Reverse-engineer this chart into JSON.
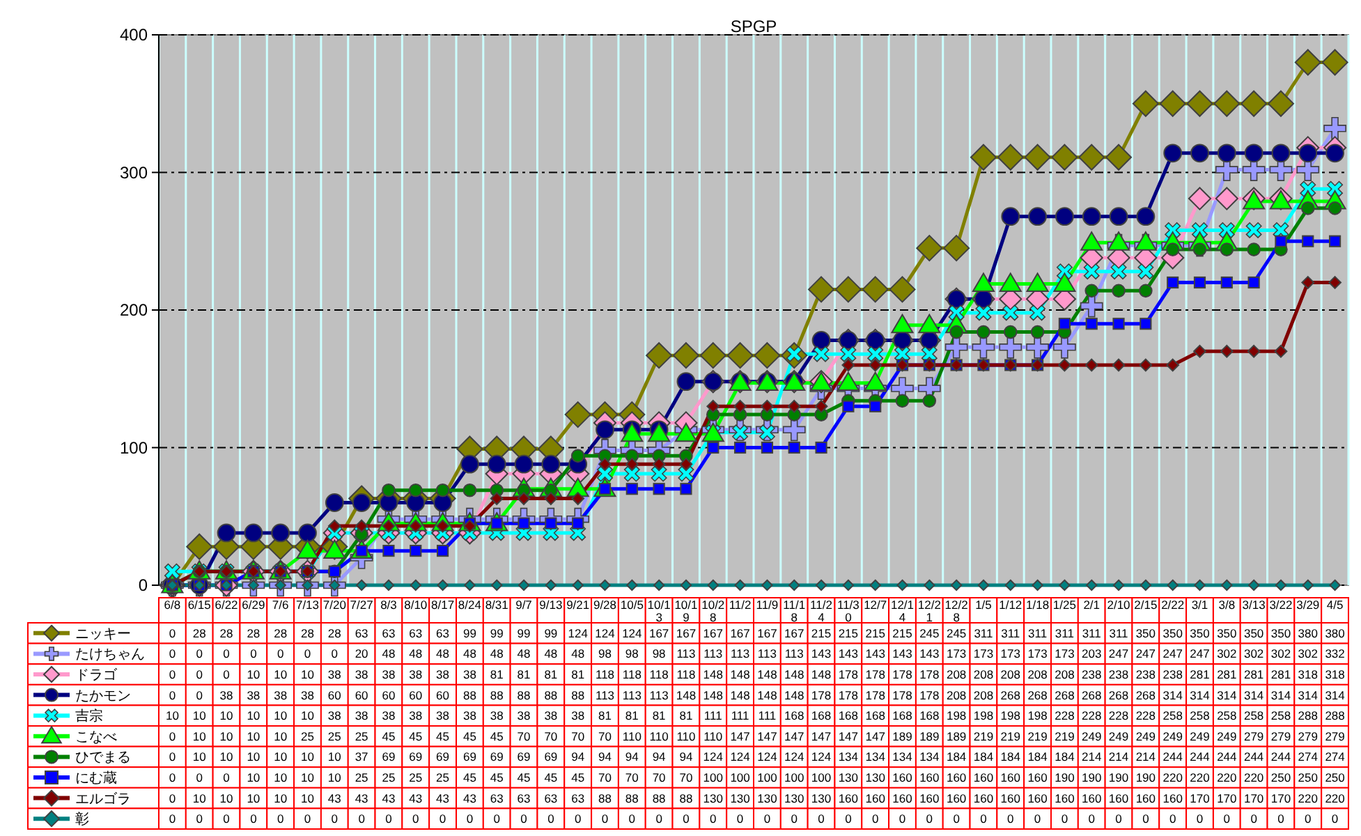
{
  "chart_data": {
    "type": "line",
    "title": "SPGP",
    "categories": [
      "6/8",
      "6/15",
      "6/22",
      "6/29",
      "7/6",
      "7/13",
      "7/20",
      "7/27",
      "8/3",
      "8/10",
      "8/17",
      "8/24",
      "8/31",
      "9/7",
      "9/13",
      "9/21",
      "9/28",
      "10/5",
      "10/13",
      "10/19",
      "10/28",
      "11/2",
      "11/9",
      "11/18",
      "11/24",
      "11/30",
      "12/7",
      "12/14",
      "12/21",
      "12/28",
      "1/5",
      "1/12",
      "1/18",
      "1/25",
      "2/1",
      "2/10",
      "2/15",
      "2/22",
      "3/1",
      "3/8",
      "3/13",
      "3/22",
      "3/29",
      "4/5"
    ],
    "series": [
      {
        "name": "ニッキー",
        "color": "#808000",
        "marker": "diamond",
        "values": [
          0,
          28,
          28,
          28,
          28,
          28,
          28,
          63,
          63,
          63,
          63,
          99,
          99,
          99,
          99,
          124,
          124,
          124,
          167,
          167,
          167,
          167,
          167,
          167,
          215,
          215,
          215,
          215,
          245,
          245,
          311,
          311,
          311,
          311,
          311,
          311,
          350,
          350,
          350,
          350,
          350,
          350,
          380,
          380
        ]
      },
      {
        "name": "たけちゃん",
        "color": "#9999ff",
        "marker": "cross",
        "values": [
          0,
          0,
          0,
          0,
          0,
          0,
          0,
          20,
          48,
          48,
          48,
          48,
          48,
          48,
          48,
          48,
          98,
          98,
          98,
          113,
          113,
          113,
          113,
          113,
          143,
          143,
          143,
          143,
          143,
          173,
          173,
          173,
          173,
          173,
          203,
          247,
          247,
          247,
          247,
          302,
          302,
          302,
          302,
          332
        ]
      },
      {
        "name": "ドラゴ",
        "color": "#ff99cc",
        "marker": "diamond",
        "values": [
          0,
          0,
          0,
          10,
          10,
          10,
          38,
          38,
          38,
          38,
          38,
          38,
          81,
          81,
          81,
          81,
          118,
          118,
          118,
          118,
          148,
          148,
          148,
          148,
          148,
          178,
          178,
          178,
          178,
          208,
          208,
          208,
          208,
          208,
          238,
          238,
          238,
          238,
          281,
          281,
          281,
          281,
          318,
          318
        ]
      },
      {
        "name": "たかモン",
        "color": "#000080",
        "marker": "circle",
        "values": [
          0,
          0,
          38,
          38,
          38,
          38,
          60,
          60,
          60,
          60,
          60,
          88,
          88,
          88,
          88,
          88,
          113,
          113,
          113,
          148,
          148,
          148,
          148,
          148,
          178,
          178,
          178,
          178,
          178,
          208,
          208,
          268,
          268,
          268,
          268,
          268,
          268,
          314,
          314,
          314,
          314,
          314,
          314,
          314
        ]
      },
      {
        "name": "吉宗",
        "color": "#00ffff",
        "marker": "x",
        "values": [
          10,
          10,
          10,
          10,
          10,
          10,
          38,
          38,
          38,
          38,
          38,
          38,
          38,
          38,
          38,
          38,
          81,
          81,
          81,
          81,
          111,
          111,
          111,
          168,
          168,
          168,
          168,
          168,
          168,
          198,
          198,
          198,
          198,
          228,
          228,
          228,
          228,
          258,
          258,
          258,
          258,
          258,
          288,
          288
        ]
      },
      {
        "name": "こなべ",
        "color": "#00ff00",
        "marker": "triangle",
        "values": [
          0,
          10,
          10,
          10,
          10,
          25,
          25,
          25,
          45,
          45,
          45,
          45,
          45,
          70,
          70,
          70,
          70,
          110,
          110,
          110,
          110,
          147,
          147,
          147,
          147,
          147,
          147,
          189,
          189,
          189,
          219,
          219,
          219,
          219,
          249,
          249,
          249,
          249,
          249,
          249,
          279,
          279,
          279,
          279
        ]
      },
      {
        "name": "ひでまる",
        "color": "#008000",
        "marker": "circle",
        "values": [
          0,
          10,
          10,
          10,
          10,
          10,
          10,
          37,
          69,
          69,
          69,
          69,
          69,
          69,
          69,
          94,
          94,
          94,
          94,
          94,
          124,
          124,
          124,
          124,
          124,
          134,
          134,
          134,
          134,
          184,
          184,
          184,
          184,
          184,
          214,
          214,
          214,
          244,
          244,
          244,
          244,
          244,
          274,
          274
        ]
      },
      {
        "name": "にむ蔵",
        "color": "#0000ff",
        "marker": "square",
        "values": [
          0,
          0,
          0,
          10,
          10,
          10,
          10,
          25,
          25,
          25,
          25,
          45,
          45,
          45,
          45,
          45,
          70,
          70,
          70,
          70,
          100,
          100,
          100,
          100,
          100,
          130,
          130,
          160,
          160,
          160,
          160,
          160,
          160,
          190,
          190,
          190,
          190,
          220,
          220,
          220,
          220,
          250,
          250,
          250
        ]
      },
      {
        "name": "エルゴラ",
        "color": "#800000",
        "marker": "diamond",
        "values": [
          0,
          10,
          10,
          10,
          10,
          10,
          43,
          43,
          43,
          43,
          43,
          43,
          63,
          63,
          63,
          63,
          88,
          88,
          88,
          88,
          130,
          130,
          130,
          130,
          130,
          160,
          160,
          160,
          160,
          160,
          160,
          160,
          160,
          160,
          160,
          160,
          160,
          160,
          170,
          170,
          170,
          170,
          220,
          220
        ]
      },
      {
        "name": "彰",
        "color": "#008080",
        "marker": "diamond",
        "values": [
          0,
          0,
          0,
          0,
          0,
          0,
          0,
          0,
          0,
          0,
          0,
          0,
          0,
          0,
          0,
          0,
          0,
          0,
          0,
          0,
          0,
          0,
          0,
          0,
          0,
          0,
          0,
          0,
          0,
          0,
          0,
          0,
          0,
          0,
          0,
          0,
          0,
          0,
          0,
          0,
          0,
          0,
          0,
          0
        ]
      }
    ],
    "ylim": [
      0,
      400
    ],
    "yticks": [
      0,
      100,
      200,
      300,
      400
    ],
    "grid": true,
    "legend": "bottom",
    "data_labels": true,
    "line_style": "solid"
  }
}
